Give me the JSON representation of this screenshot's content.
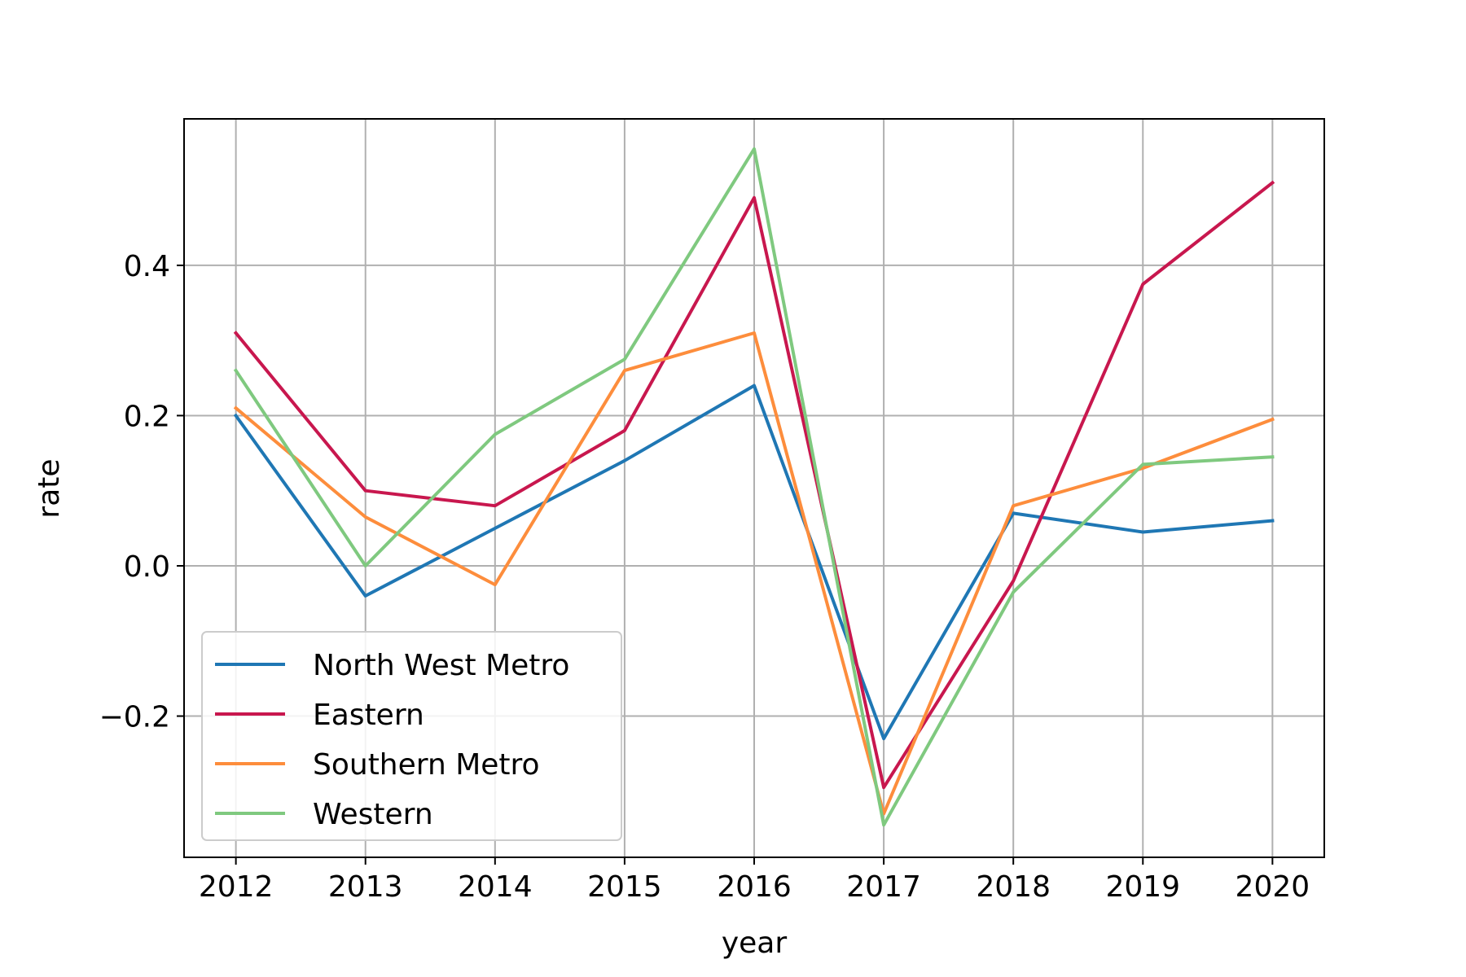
{
  "chart_data": {
    "type": "line",
    "title": "",
    "xlabel": "year",
    "ylabel": "rate",
    "x": [
      2012,
      2013,
      2014,
      2015,
      2016,
      2017,
      2018,
      2019,
      2020
    ],
    "x_ticks": [
      "2012",
      "2013",
      "2014",
      "2015",
      "2016",
      "2017",
      "2018",
      "2019",
      "2020"
    ],
    "y_ticks": [
      -0.2,
      0.0,
      0.2,
      0.4
    ],
    "y_tick_labels": [
      "−0.2",
      "0.0",
      "0.2",
      "0.4"
    ],
    "xlim": [
      2011.6,
      2020.4
    ],
    "ylim": [
      -0.388,
      0.595
    ],
    "grid": true,
    "legend_position": "lower-left",
    "series": [
      {
        "name": "North West Metro",
        "color": "#1f77b4",
        "values": [
          0.2,
          -0.04,
          0.05,
          0.14,
          0.24,
          -0.23,
          0.07,
          0.045,
          0.06
        ]
      },
      {
        "name": "Eastern",
        "color": "#c8174e",
        "values": [
          0.31,
          0.1,
          0.08,
          0.18,
          0.49,
          -0.295,
          -0.02,
          0.375,
          0.51
        ]
      },
      {
        "name": "Southern Metro",
        "color": "#fd8d3c",
        "values": [
          0.21,
          0.065,
          -0.025,
          0.26,
          0.31,
          -0.33,
          0.08,
          0.13,
          0.195
        ]
      },
      {
        "name": "Western",
        "color": "#7fc97f",
        "values": [
          0.26,
          0.0,
          0.175,
          0.275,
          0.555,
          -0.345,
          -0.035,
          0.135,
          0.145
        ]
      }
    ]
  }
}
